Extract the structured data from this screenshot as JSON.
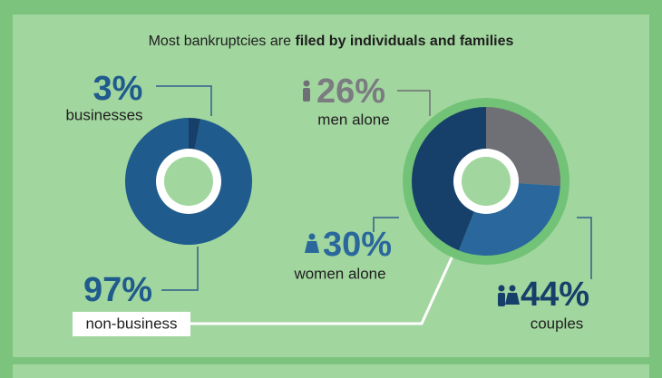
{
  "header": {
    "title_regular": "Most bankruptcies are",
    "title_bold": "filed by individuals and families"
  },
  "chart_data": [
    {
      "type": "pie",
      "categories": [
        "businesses",
        "non-business"
      ],
      "values": [
        3,
        97
      ],
      "value_labels": [
        "3%",
        "97%"
      ],
      "colors": [
        "#163f6a",
        "#1f5b8c"
      ]
    },
    {
      "type": "pie",
      "categories": [
        "men alone",
        "women alone",
        "couples"
      ],
      "values": [
        26,
        30,
        44
      ],
      "value_labels": [
        "26%",
        "30%",
        "44%"
      ],
      "colors": [
        "#6e7075",
        "#2a679c",
        "#163f6a"
      ]
    }
  ]
}
